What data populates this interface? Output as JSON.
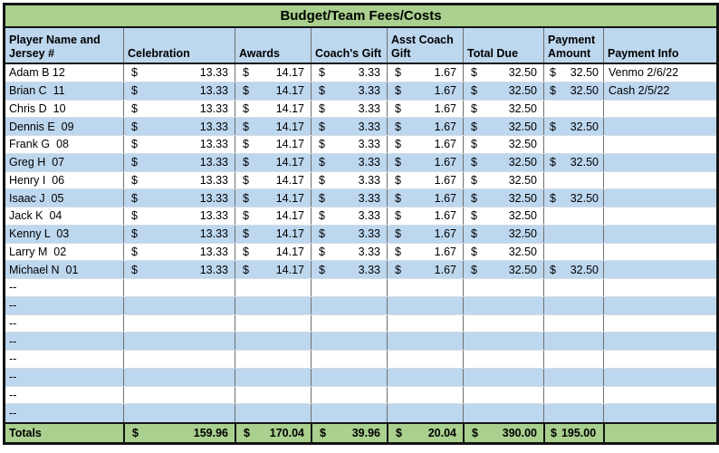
{
  "title": "Budget/Team Fees/Costs",
  "currency_symbol": "$",
  "columns": {
    "player": "Player Name and Jersey #",
    "celebration": "Celebration",
    "awards": "Awards",
    "coachs_gift": "Coach's Gift",
    "asst_coach_gift": "Asst Coach Gift",
    "total_due": "Total Due",
    "payment_amount": "Payment Amount",
    "payment_info": "Payment Info"
  },
  "rows": [
    {
      "player": "Adam B 12",
      "celebration": "13.33",
      "awards": "14.17",
      "coachs_gift": "3.33",
      "asst_coach_gift": "1.67",
      "total_due": "32.50",
      "payment_amount": "32.50",
      "payment_info": "Venmo 2/6/22"
    },
    {
      "player": "Brian C  11",
      "celebration": "13.33",
      "awards": "14.17",
      "coachs_gift": "3.33",
      "asst_coach_gift": "1.67",
      "total_due": "32.50",
      "payment_amount": "32.50",
      "payment_info": "Cash 2/5/22"
    },
    {
      "player": "Chris D  10",
      "celebration": "13.33",
      "awards": "14.17",
      "coachs_gift": "3.33",
      "asst_coach_gift": "1.67",
      "total_due": "32.50",
      "payment_amount": "",
      "payment_info": ""
    },
    {
      "player": "Dennis E  09",
      "celebration": "13.33",
      "awards": "14.17",
      "coachs_gift": "3.33",
      "asst_coach_gift": "1.67",
      "total_due": "32.50",
      "payment_amount": "32.50",
      "payment_info": ""
    },
    {
      "player": "Frank G  08",
      "celebration": "13.33",
      "awards": "14.17",
      "coachs_gift": "3.33",
      "asst_coach_gift": "1.67",
      "total_due": "32.50",
      "payment_amount": "",
      "payment_info": ""
    },
    {
      "player": "Greg H  07",
      "celebration": "13.33",
      "awards": "14.17",
      "coachs_gift": "3.33",
      "asst_coach_gift": "1.67",
      "total_due": "32.50",
      "payment_amount": "32.50",
      "payment_info": ""
    },
    {
      "player": "Henry I  06",
      "celebration": "13.33",
      "awards": "14.17",
      "coachs_gift": "3.33",
      "asst_coach_gift": "1.67",
      "total_due": "32.50",
      "payment_amount": "",
      "payment_info": ""
    },
    {
      "player": "Isaac J  05",
      "celebration": "13.33",
      "awards": "14.17",
      "coachs_gift": "3.33",
      "asst_coach_gift": "1.67",
      "total_due": "32.50",
      "payment_amount": "32.50",
      "payment_info": ""
    },
    {
      "player": "Jack K  04",
      "celebration": "13.33",
      "awards": "14.17",
      "coachs_gift": "3.33",
      "asst_coach_gift": "1.67",
      "total_due": "32.50",
      "payment_amount": "",
      "payment_info": ""
    },
    {
      "player": "Kenny L  03",
      "celebration": "13.33",
      "awards": "14.17",
      "coachs_gift": "3.33",
      "asst_coach_gift": "1.67",
      "total_due": "32.50",
      "payment_amount": "",
      "payment_info": ""
    },
    {
      "player": "Larry M  02",
      "celebration": "13.33",
      "awards": "14.17",
      "coachs_gift": "3.33",
      "asst_coach_gift": "1.67",
      "total_due": "32.50",
      "payment_amount": "",
      "payment_info": ""
    },
    {
      "player": "Michael N  01",
      "celebration": "13.33",
      "awards": "14.17",
      "coachs_gift": "3.33",
      "asst_coach_gift": "1.67",
      "total_due": "32.50",
      "payment_amount": "32.50",
      "payment_info": ""
    },
    {
      "player": "--",
      "celebration": "",
      "awards": "",
      "coachs_gift": "",
      "asst_coach_gift": "",
      "total_due": "",
      "payment_amount": "",
      "payment_info": ""
    },
    {
      "player": "--",
      "celebration": "",
      "awards": "",
      "coachs_gift": "",
      "asst_coach_gift": "",
      "total_due": "",
      "payment_amount": "",
      "payment_info": ""
    },
    {
      "player": "--",
      "celebration": "",
      "awards": "",
      "coachs_gift": "",
      "asst_coach_gift": "",
      "total_due": "",
      "payment_amount": "",
      "payment_info": ""
    },
    {
      "player": "--",
      "celebration": "",
      "awards": "",
      "coachs_gift": "",
      "asst_coach_gift": "",
      "total_due": "",
      "payment_amount": "",
      "payment_info": ""
    },
    {
      "player": "--",
      "celebration": "",
      "awards": "",
      "coachs_gift": "",
      "asst_coach_gift": "",
      "total_due": "",
      "payment_amount": "",
      "payment_info": ""
    },
    {
      "player": "--",
      "celebration": "",
      "awards": "",
      "coachs_gift": "",
      "asst_coach_gift": "",
      "total_due": "",
      "payment_amount": "",
      "payment_info": ""
    },
    {
      "player": "--",
      "celebration": "",
      "awards": "",
      "coachs_gift": "",
      "asst_coach_gift": "",
      "total_due": "",
      "payment_amount": "",
      "payment_info": ""
    },
    {
      "player": "--",
      "celebration": "",
      "awards": "",
      "coachs_gift": "",
      "asst_coach_gift": "",
      "total_due": "",
      "payment_amount": "",
      "payment_info": ""
    }
  ],
  "totals": {
    "label": "Totals",
    "celebration": "159.96",
    "awards": "170.04",
    "coachs_gift": "39.96",
    "asst_coach_gift": "20.04",
    "total_due": "390.00",
    "payment_amount": "195.00",
    "payment_info": ""
  },
  "colors": {
    "band_green": "#a9d08e",
    "band_blue": "#bdd7ee",
    "row_white": "#ffffff",
    "border_black": "#141414"
  }
}
